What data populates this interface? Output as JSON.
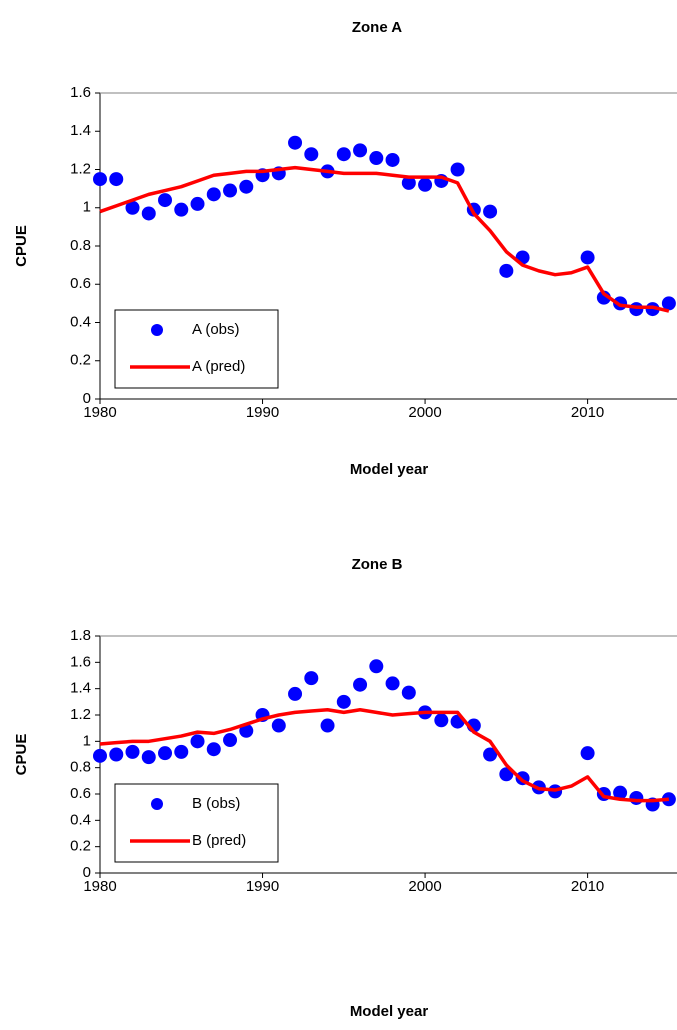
{
  "chart_data": [
    {
      "type": "line",
      "title": "Zone A",
      "x_label": "Model year",
      "y_label": "CPUE",
      "x": [
        1980,
        1981,
        1982,
        1983,
        1984,
        1985,
        1986,
        1987,
        1988,
        1989,
        1990,
        1991,
        1992,
        1993,
        1994,
        1995,
        1996,
        1997,
        1998,
        1999,
        2000,
        2001,
        2002,
        2003,
        2004,
        2005,
        2006,
        2007,
        2008,
        2009,
        2010,
        2011,
        2012,
        2013,
        2014,
        2015
      ],
      "series": [
        {
          "name": "A (obs)",
          "color": "#0000ff",
          "mode": "markers",
          "values": [
            1.15,
            1.15,
            1.0,
            0.97,
            1.04,
            0.99,
            1.02,
            1.07,
            1.09,
            1.11,
            1.17,
            1.18,
            1.34,
            1.28,
            1.19,
            1.28,
            1.3,
            1.26,
            1.25,
            1.13,
            1.12,
            1.14,
            1.2,
            0.99,
            0.98,
            0.67,
            0.74,
            null,
            null,
            null,
            0.74,
            0.53,
            0.5,
            0.47,
            0.47,
            0.5
          ]
        },
        {
          "name": "A (pred)",
          "color": "#ff0000",
          "mode": "line",
          "values": [
            0.98,
            1.01,
            1.04,
            1.07,
            1.09,
            1.11,
            1.14,
            1.17,
            1.18,
            1.19,
            1.19,
            1.2,
            1.21,
            1.2,
            1.19,
            1.18,
            1.18,
            1.18,
            1.17,
            1.16,
            1.16,
            1.16,
            1.13,
            0.97,
            0.88,
            0.77,
            0.7,
            0.67,
            0.65,
            0.66,
            0.69,
            0.55,
            0.49,
            0.48,
            0.48,
            0.46
          ]
        }
      ],
      "xlim": [
        1980,
        2015.5
      ],
      "xticks": [
        1980,
        1990,
        2000,
        2010
      ],
      "ylim": [
        0,
        1.6
      ],
      "yticks": [
        0,
        0.2,
        0.4,
        0.6,
        0.8,
        1,
        1.2,
        1.4,
        1.6
      ],
      "grid": false,
      "legend": "lower left"
    },
    {
      "type": "line",
      "title": "Zone B",
      "x_label": "Model year",
      "y_label": "CPUE",
      "x": [
        1980,
        1981,
        1982,
        1983,
        1984,
        1985,
        1986,
        1987,
        1988,
        1989,
        1990,
        1991,
        1992,
        1993,
        1994,
        1995,
        1996,
        1997,
        1998,
        1999,
        2000,
        2001,
        2002,
        2003,
        2004,
        2005,
        2006,
        2007,
        2008,
        2009,
        2010,
        2011,
        2012,
        2013,
        2014,
        2015
      ],
      "series": [
        {
          "name": "B (obs)",
          "color": "#0000ff",
          "mode": "markers",
          "values": [
            0.89,
            0.9,
            0.92,
            0.88,
            0.91,
            0.92,
            1.0,
            0.94,
            1.01,
            1.08,
            1.2,
            1.12,
            1.36,
            1.48,
            1.12,
            1.3,
            1.43,
            1.57,
            1.44,
            1.37,
            1.22,
            1.16,
            1.15,
            1.12,
            0.9,
            0.75,
            0.72,
            0.65,
            0.62,
            null,
            0.91,
            0.6,
            0.61,
            0.57,
            0.52,
            0.56
          ]
        },
        {
          "name": "B (pred)",
          "color": "#ff0000",
          "mode": "line",
          "values": [
            0.98,
            0.99,
            1.0,
            1.0,
            1.02,
            1.04,
            1.07,
            1.06,
            1.09,
            1.13,
            1.17,
            1.2,
            1.22,
            1.23,
            1.24,
            1.22,
            1.24,
            1.22,
            1.2,
            1.21,
            1.22,
            1.22,
            1.22,
            1.07,
            1.0,
            0.82,
            0.7,
            0.64,
            0.63,
            0.66,
            0.73,
            0.58,
            0.56,
            0.55,
            0.55,
            0.56
          ]
        }
      ],
      "xlim": [
        1980,
        2015.5
      ],
      "xticks": [
        1980,
        1990,
        2000,
        2010
      ],
      "ylim": [
        0,
        1.8
      ],
      "yticks": [
        0,
        0.2,
        0.4,
        0.6,
        0.8,
        1,
        1.2,
        1.4,
        1.6,
        1.8
      ],
      "grid": false,
      "legend": "lower left"
    }
  ]
}
